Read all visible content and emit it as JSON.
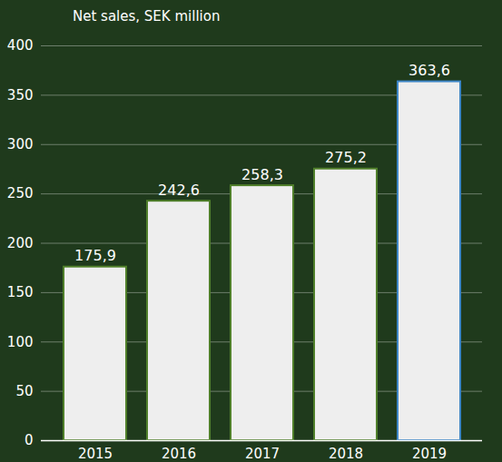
{
  "chart_data": {
    "type": "bar",
    "title": "Net sales, SEK million",
    "categories": [
      "2015",
      "2016",
      "2017",
      "2018",
      "2019"
    ],
    "values": [
      175.9,
      242.6,
      258.3,
      275.2,
      363.6
    ],
    "value_labels": [
      "175,9",
      "242,6",
      "258,3",
      "275,2",
      "363,6"
    ],
    "colors": [
      "#4f7f2a",
      "#4f7f2a",
      "#4f7f2a",
      "#4f7f2a",
      "#3d86c6"
    ],
    "ylim": [
      0,
      400
    ],
    "yticks": [
      0,
      50,
      100,
      150,
      200,
      250,
      300,
      350,
      400
    ],
    "grid": true,
    "data_labels": true
  }
}
